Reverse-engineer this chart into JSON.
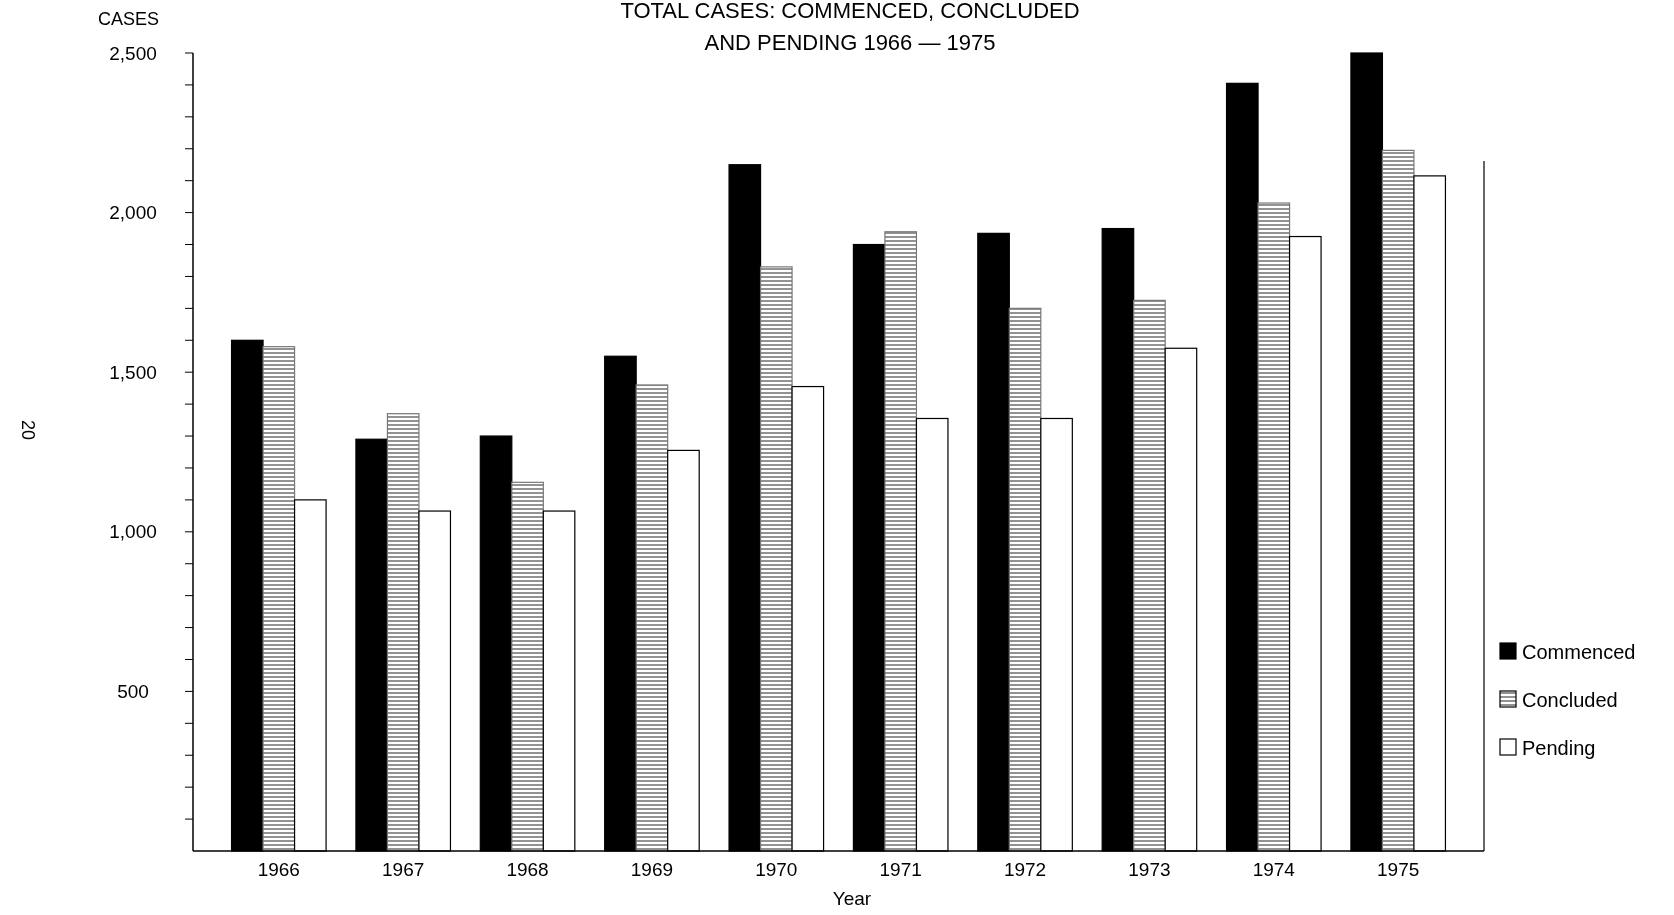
{
  "chart_data": {
    "type": "bar",
    "title": "TOTAL CASES: COMMENCED, CONCLUDED\nAND PENDING 1966 — 1975",
    "xlabel": "Year",
    "ylabel": "CASES",
    "categories": [
      "1966",
      "1967",
      "1968",
      "1969",
      "1970",
      "1971",
      "1972",
      "1973",
      "1974",
      "1975"
    ],
    "series": [
      {
        "name": "Commenced",
        "color": "#000000",
        "values": [
          1600,
          1290,
          1300,
          1550,
          2150,
          1900,
          1935,
          1950,
          2405,
          2500
        ]
      },
      {
        "name": "Concluded",
        "color": "#777777",
        "values": [
          1580,
          1370,
          1155,
          1460,
          1830,
          1940,
          1700,
          1725,
          2030,
          2195
        ]
      },
      {
        "name": "Pending",
        "color": "#ffffff",
        "values": [
          1100,
          1065,
          1065,
          1255,
          1455,
          1355,
          1355,
          1575,
          1925,
          2115
        ]
      }
    ],
    "ylim": [
      0,
      2500
    ],
    "yticks": [
      {
        "value": 100,
        "label": null
      },
      {
        "value": 200,
        "label": null
      },
      {
        "value": 300,
        "label": null
      },
      {
        "value": 400,
        "label": null
      },
      "500",
      {
        "value": 600,
        "label": null
      },
      {
        "value": 700,
        "label": null
      },
      {
        "value": 800,
        "label": null
      },
      {
        "value": 900,
        "label": null
      },
      {
        "value": 1000,
        "label": "1,000"
      },
      {
        "value": 1100,
        "label": null
      },
      {
        "value": 1200,
        "label": null
      },
      {
        "value": 1300,
        "label": null
      },
      {
        "value": 1400,
        "label": null
      },
      {
        "value": 1500,
        "label": "1,500"
      },
      {
        "value": 1600,
        "label": null
      },
      {
        "value": 1700,
        "label": null
      },
      {
        "value": 1800,
        "label": null
      },
      {
        "value": 1900,
        "label": null
      },
      {
        "value": 2000,
        "label": "2,000"
      },
      {
        "value": 2100,
        "label": null
      },
      {
        "value": 2200,
        "label": null
      },
      {
        "value": 2300,
        "label": null
      },
      {
        "value": 2400,
        "label": null
      },
      {
        "value": 2500,
        "label": "2,500"
      }
    ],
    "grid": false,
    "legend": "right",
    "annotations": [
      "20"
    ]
  }
}
